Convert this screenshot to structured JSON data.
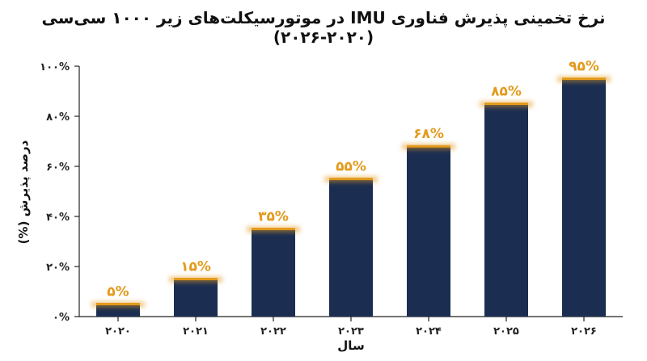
{
  "chart_data": {
    "type": "bar",
    "title": "نرخ تخمینی پذیرش فناوری IMU در موتورسیکلت‌های زیر ۱۰۰۰ سی‌سی (۲۰۲۰-۲۰۲۶)",
    "xlabel": "سال",
    "ylabel": "درصد پذیرش (%)",
    "categories": [
      "۲۰۲۰",
      "۲۰۲۱",
      "۲۰۲۲",
      "۲۰۲۳",
      "۲۰۲۴",
      "۲۰۲۵",
      "۲۰۲۶"
    ],
    "values": [
      5,
      15,
      35,
      55,
      68,
      85,
      95
    ],
    "data_labels": [
      "۵%",
      "۱۵%",
      "۳۵%",
      "۵۵%",
      "۶۸%",
      "۸۵%",
      "۹۵%"
    ],
    "yticks": [
      0,
      20,
      40,
      60,
      80,
      100
    ],
    "ytick_labels": [
      "۰%",
      "۲۰%",
      "۴۰%",
      "۶۰%",
      "۸۰%",
      "۱۰۰%"
    ],
    "ylim": [
      0,
      100
    ],
    "grid": false,
    "legend": "none",
    "colors": {
      "bar": "#1b2e52",
      "accent": "#e39a1c",
      "axis": "#222222"
    }
  }
}
